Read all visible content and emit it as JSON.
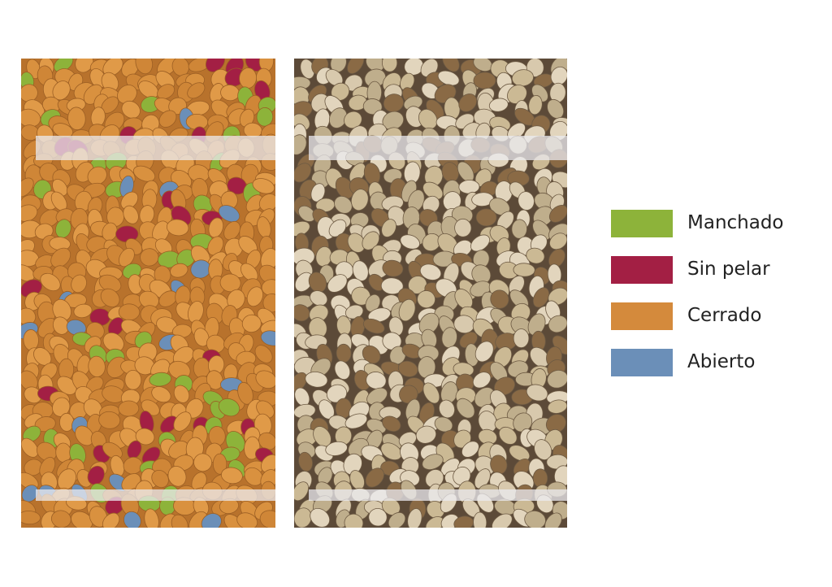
{
  "legend": {
    "items": [
      {
        "label": "Manchado",
        "color": "#8db33a"
      },
      {
        "label": "Sin pelar",
        "color": "#a31f44"
      },
      {
        "label": "Cerrado",
        "color": "#d48a3c"
      },
      {
        "label": "Abierto",
        "color": "#6b8fb8"
      }
    ]
  },
  "images": {
    "segmentation": {
      "description_icon": "segmentation-mask-image",
      "background_color": "#d48a3c"
    },
    "original": {
      "description_icon": "pistachio-photo-image",
      "background_color": "#6e5a44"
    }
  }
}
